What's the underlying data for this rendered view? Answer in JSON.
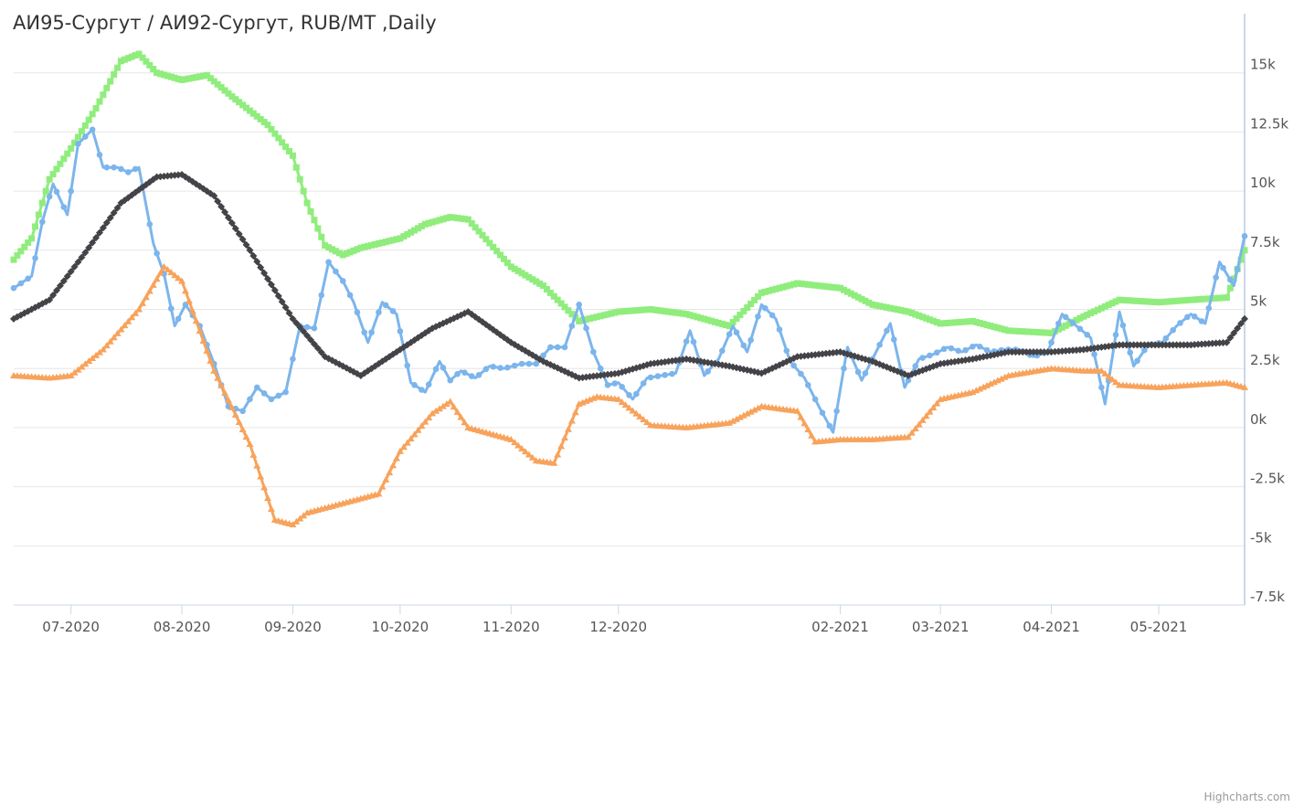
{
  "chart_data": {
    "type": "line",
    "title": "АИ95-Сургут / АИ92-Сургут, RUB/MT ,Daily",
    "credits": "Highcharts.com",
    "x_range": [
      "2020-06-15",
      "2021-05-25"
    ],
    "x_tick_labels": [
      {
        "date": "2020-07-01",
        "label": "07-2020"
      },
      {
        "date": "2020-08-01",
        "label": "08-2020"
      },
      {
        "date": "2020-09-01",
        "label": "09-2020"
      },
      {
        "date": "2020-10-01",
        "label": "10-2020"
      },
      {
        "date": "2020-11-01",
        "label": "11-2020"
      },
      {
        "date": "2020-12-01",
        "label": "12-2020"
      },
      {
        "date": "2021-02-01",
        "label": "02-2021"
      },
      {
        "date": "2021-03-01",
        "label": "03-2021"
      },
      {
        "date": "2021-04-01",
        "label": "04-2021"
      },
      {
        "date": "2021-05-01",
        "label": "05-2021"
      }
    ],
    "y_axis": {
      "position": "right",
      "ylim": [
        -7500,
        17500
      ],
      "ticks": [
        {
          "value": 15000,
          "label": "15k"
        },
        {
          "value": 12500,
          "label": "12.5k"
        },
        {
          "value": 10000,
          "label": "10k"
        },
        {
          "value": 7500,
          "label": "7.5k"
        },
        {
          "value": 5000,
          "label": "5k"
        },
        {
          "value": 2500,
          "label": "2.5k"
        },
        {
          "value": 0,
          "label": "0k"
        },
        {
          "value": -2500,
          "label": "-2.5k"
        },
        {
          "value": -5000,
          "label": "-5k"
        },
        {
          "value": -7500,
          "label": "-7.5k"
        }
      ],
      "grid": true
    },
    "series": [
      {
        "color": "#90ed7d",
        "marker": "square",
        "x": [
          "2020-06-15",
          "2020-06-20",
          "2020-06-25",
          "2020-07-01",
          "2020-07-08",
          "2020-07-15",
          "2020-07-20",
          "2020-07-25",
          "2020-08-01",
          "2020-08-08",
          "2020-08-15",
          "2020-08-25",
          "2020-09-01",
          "2020-09-05",
          "2020-09-10",
          "2020-09-15",
          "2020-09-20",
          "2020-10-01",
          "2020-10-08",
          "2020-10-15",
          "2020-10-20",
          "2020-11-01",
          "2020-11-10",
          "2020-11-20",
          "2020-12-01",
          "2020-12-10",
          "2020-12-20",
          "2021-01-01",
          "2021-01-10",
          "2021-01-20",
          "2021-02-01",
          "2021-02-10",
          "2021-02-20",
          "2021-03-01",
          "2021-03-10",
          "2021-03-20",
          "2021-04-01",
          "2021-04-10",
          "2021-04-20",
          "2021-05-01",
          "2021-05-10",
          "2021-05-20",
          "2021-05-25"
        ],
        "y": [
          7100,
          8000,
          10500,
          11800,
          13500,
          15500,
          15800,
          15000,
          14700,
          14900,
          14000,
          12800,
          11500,
          9500,
          7700,
          7300,
          7600,
          8000,
          8600,
          8900,
          8800,
          6800,
          6000,
          4500,
          4900,
          5000,
          4800,
          4300,
          5700,
          6100,
          5900,
          5200,
          4900,
          4400,
          4500,
          4100,
          4000,
          4700,
          5400,
          5300,
          5400,
          5500,
          7500
        ]
      },
      {
        "color": "#7cb5ec",
        "marker": "circle",
        "x": [
          "2020-06-15",
          "2020-06-20",
          "2020-06-23",
          "2020-06-26",
          "2020-06-30",
          "2020-07-03",
          "2020-07-07",
          "2020-07-10",
          "2020-07-14",
          "2020-07-17",
          "2020-07-20",
          "2020-07-24",
          "2020-07-27",
          "2020-07-30",
          "2020-08-02",
          "2020-08-06",
          "2020-08-10",
          "2020-08-14",
          "2020-08-18",
          "2020-08-22",
          "2020-08-26",
          "2020-08-30",
          "2020-09-03",
          "2020-09-07",
          "2020-09-11",
          "2020-09-15",
          "2020-09-18",
          "2020-09-22",
          "2020-09-26",
          "2020-09-30",
          "2020-10-04",
          "2020-10-08",
          "2020-10-12",
          "2020-10-15",
          "2020-10-18",
          "2020-10-22",
          "2020-10-26",
          "2020-10-30",
          "2020-11-04",
          "2020-11-08",
          "2020-11-12",
          "2020-11-16",
          "2020-11-20",
          "2020-11-24",
          "2020-11-28",
          "2020-12-01",
          "2020-12-05",
          "2020-12-09",
          "2020-12-13",
          "2020-12-17",
          "2020-12-21",
          "2020-12-25",
          "2020-12-29",
          "2021-01-02",
          "2021-01-06",
          "2021-01-10",
          "2021-01-14",
          "2021-01-18",
          "2021-01-22",
          "2021-01-26",
          "2021-01-30",
          "2021-02-03",
          "2021-02-07",
          "2021-02-11",
          "2021-02-15",
          "2021-02-19",
          "2021-02-23",
          "2021-02-27",
          "2021-03-03",
          "2021-03-07",
          "2021-03-11",
          "2021-03-15",
          "2021-03-19",
          "2021-03-23",
          "2021-03-27",
          "2021-03-31",
          "2021-04-04",
          "2021-04-08",
          "2021-04-12",
          "2021-04-16",
          "2021-04-20",
          "2021-04-24",
          "2021-04-28",
          "2021-05-02",
          "2021-05-06",
          "2021-05-10",
          "2021-05-14",
          "2021-05-18",
          "2021-05-22",
          "2021-05-25"
        ],
        "y": [
          5900,
          6400,
          8700,
          10300,
          9000,
          12000,
          12600,
          11000,
          11000,
          10800,
          11000,
          7800,
          6500,
          4300,
          5200,
          4300,
          2700,
          900,
          700,
          1700,
          1200,
          1500,
          4300,
          4200,
          7000,
          6200,
          5300,
          3600,
          5300,
          4800,
          1900,
          1500,
          2800,
          2000,
          2400,
          2100,
          2600,
          2500,
          2700,
          2700,
          3400,
          3400,
          5200,
          3200,
          1800,
          1900,
          1200,
          2100,
          2200,
          2300,
          4100,
          2200,
          2900,
          4300,
          3200,
          5200,
          4600,
          2800,
          2100,
          900,
          -200,
          3400,
          2000,
          3200,
          4400,
          1700,
          2900,
          3100,
          3400,
          3200,
          3500,
          3200,
          3300,
          3300,
          3000,
          3200,
          4800,
          4300,
          3800,
          1000,
          4900,
          2600,
          3500,
          3600,
          4300,
          4800,
          4400,
          7000,
          6000,
          8100
        ]
      },
      {
        "color": "#434348",
        "marker": "diamond",
        "x": [
          "2020-06-15",
          "2020-06-25",
          "2020-07-05",
          "2020-07-15",
          "2020-07-25",
          "2020-08-01",
          "2020-08-10",
          "2020-08-20",
          "2020-09-01",
          "2020-09-10",
          "2020-09-20",
          "2020-10-01",
          "2020-10-10",
          "2020-10-20",
          "2020-11-01",
          "2020-11-10",
          "2020-11-20",
          "2020-12-01",
          "2020-12-10",
          "2020-12-20",
          "2021-01-01",
          "2021-01-10",
          "2021-01-20",
          "2021-02-01",
          "2021-02-10",
          "2021-02-20",
          "2021-03-01",
          "2021-03-10",
          "2021-03-20",
          "2021-04-01",
          "2021-04-10",
          "2021-04-20",
          "2021-05-01",
          "2021-05-10",
          "2021-05-20",
          "2021-05-25"
        ],
        "y": [
          4600,
          5400,
          7400,
          9500,
          10600,
          10700,
          9800,
          7500,
          4600,
          3000,
          2200,
          3300,
          4200,
          4900,
          3600,
          2800,
          2100,
          2300,
          2700,
          2900,
          2600,
          2300,
          3000,
          3200,
          2800,
          2200,
          2700,
          2900,
          3200,
          3200,
          3300,
          3500,
          3500,
          3500,
          3600,
          4600
        ]
      },
      {
        "color": "#f7a35c",
        "marker": "triangle",
        "x": [
          "2020-06-15",
          "2020-06-25",
          "2020-07-01",
          "2020-07-10",
          "2020-07-20",
          "2020-07-27",
          "2020-08-01",
          "2020-08-10",
          "2020-08-20",
          "2020-08-27",
          "2020-09-01",
          "2020-09-05",
          "2020-09-15",
          "2020-09-25",
          "2020-10-01",
          "2020-10-10",
          "2020-10-15",
          "2020-10-20",
          "2020-11-01",
          "2020-11-08",
          "2020-11-13",
          "2020-11-20",
          "2020-11-25",
          "2020-12-01",
          "2020-12-10",
          "2020-12-20",
          "2021-01-01",
          "2021-01-10",
          "2021-01-20",
          "2021-01-25",
          "2021-02-01",
          "2021-02-10",
          "2021-02-20",
          "2021-03-01",
          "2021-03-10",
          "2021-03-20",
          "2021-04-01",
          "2021-04-10",
          "2021-04-15",
          "2021-04-20",
          "2021-05-01",
          "2021-05-10",
          "2021-05-20",
          "2021-05-25"
        ],
        "y": [
          2200,
          2100,
          2200,
          3300,
          5000,
          6800,
          6200,
          2400,
          -700,
          -3900,
          -4100,
          -3600,
          -3200,
          -2800,
          -1000,
          600,
          1100,
          0,
          -500,
          -1400,
          -1500,
          1000,
          1300,
          1200,
          100,
          0,
          200,
          900,
          700,
          -600,
          -500,
          -500,
          -400,
          1200,
          1500,
          2200,
          2500,
          2400,
          2400,
          1800,
          1700,
          1800,
          1900,
          1700
        ]
      }
    ]
  }
}
